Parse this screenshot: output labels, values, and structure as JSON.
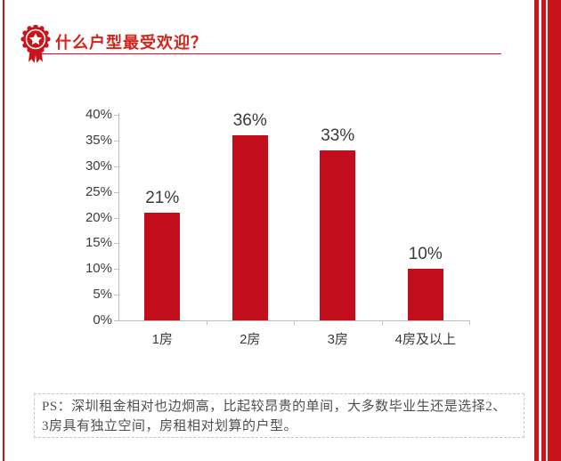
{
  "header": {
    "title": "什么户型最受欢迎？",
    "icon": "medal-rosette-icon",
    "accent_color": "#c9141b",
    "title_color": "#d3251c"
  },
  "chart_data": {
    "type": "bar",
    "categories": [
      "1房",
      "2房",
      "3房",
      "4房及以上"
    ],
    "values": [
      21,
      36,
      33,
      10
    ],
    "data_labels": [
      "21%",
      "36%",
      "33%",
      "10%"
    ],
    "yticks": [
      "0%",
      "5%",
      "10%",
      "15%",
      "20%",
      "25%",
      "30%",
      "35%",
      "40%"
    ],
    "ytick_values": [
      0,
      5,
      10,
      15,
      20,
      25,
      30,
      35,
      40
    ],
    "ylim": [
      0,
      40
    ],
    "bar_color": "#c20d1c",
    "axis_color": "#bfbfbf",
    "label_color": "#3a3a3a",
    "title": "",
    "xlabel": "",
    "ylabel": "",
    "grid": false,
    "legend": false
  },
  "footnote": {
    "lines": [
      "PS：深圳租金相对也边炯高，比起较昂贵的单间，大多数毕业生还是选择2、",
      "3房具有独立空间，房租相对划算的户型。"
    ]
  }
}
